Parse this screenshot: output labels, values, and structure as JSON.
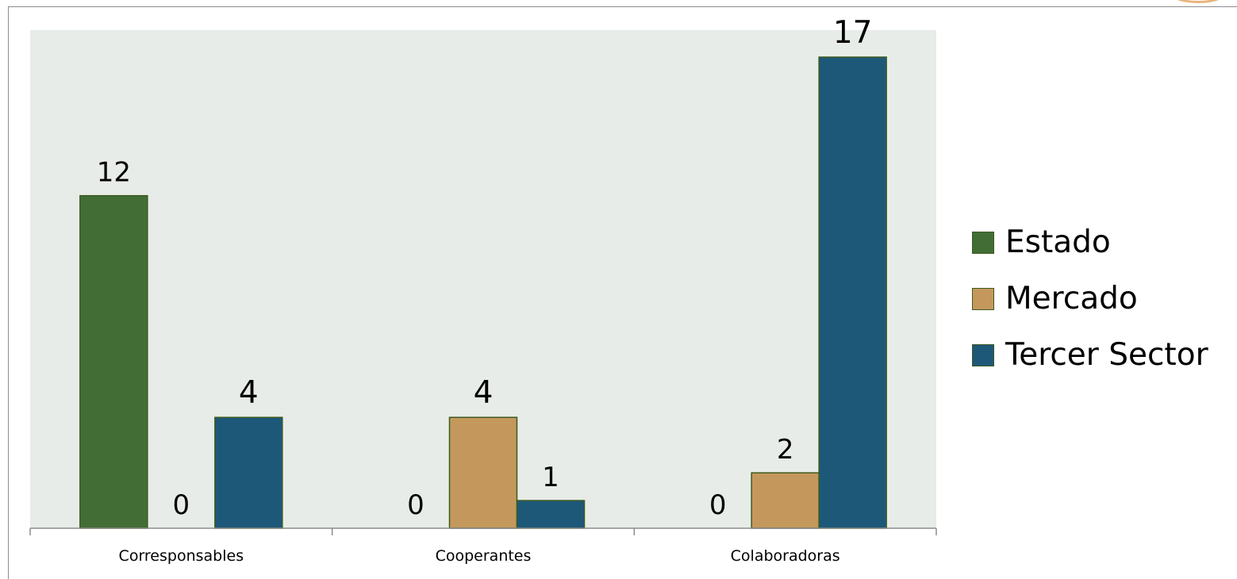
{
  "chart_data": {
    "type": "bar",
    "title": "",
    "xlabel": "",
    "ylabel": "",
    "categories": [
      "Corresponsables",
      "Cooperantes",
      "Colaboradoras"
    ],
    "series": [
      {
        "name": "Estado",
        "values": [
          12,
          0,
          0
        ],
        "color": "#426e36"
      },
      {
        "name": "Mercado",
        "values": [
          0,
          4,
          2
        ],
        "color": "#c4985c"
      },
      {
        "name": "Tercer Sector",
        "values": [
          4,
          1,
          17
        ],
        "color": "#1e5879"
      }
    ],
    "ylim": [
      0,
      18
    ],
    "grid": false,
    "legend_position": "right",
    "plot_background": "#e8ece8",
    "bar_outline": "#3d5a1f"
  }
}
